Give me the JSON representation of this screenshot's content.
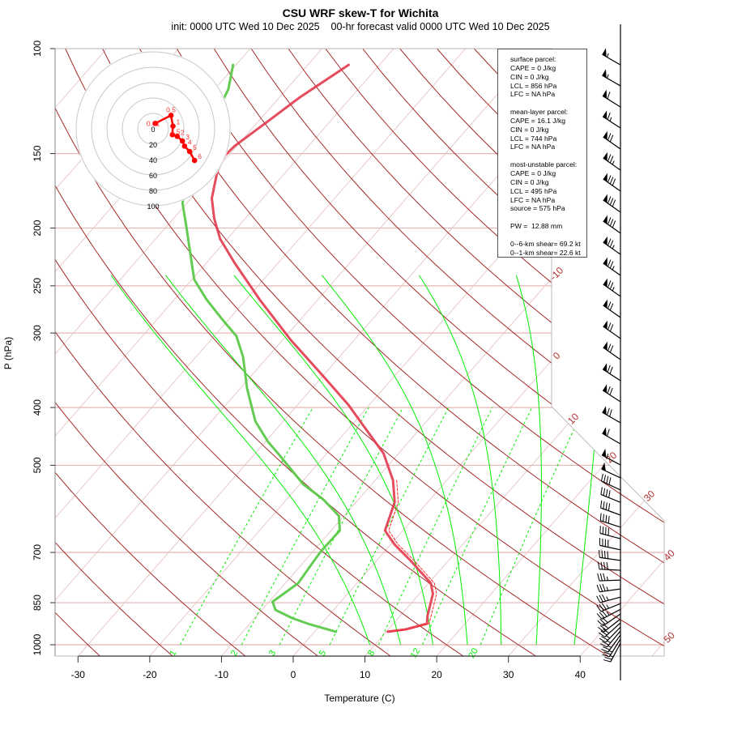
{
  "title": "CSU WRF skew-T for Wichita",
  "subtitle": "init: 0000 UTC Wed 10 Dec 2025    00-hr forecast valid 0000 UTC Wed 10 Dec 2025",
  "colors": {
    "temperature": "#e2394d",
    "dewpoint": "#5cc94a",
    "dashed_profile": "#ff2a2a",
    "dry_adiabat": "#a52a2a",
    "isotherm": "#e8c4c4",
    "pressure_line": "#e5b5b5",
    "moist_adiabat": "#00ee00",
    "mixing_ratio": "#00ee00",
    "hodograph": "#ff0000",
    "wind_barb": "#000000"
  },
  "chart_data": {
    "type": "line",
    "title": "CSU WRF skew-T for Wichita",
    "xlabel": "Temperature (C)",
    "ylabel": "P (hPa)",
    "xlim": [
      -30,
      40
    ],
    "ylim": [
      1050,
      100
    ],
    "x_ticks": [
      "-30",
      "-20",
      "-10",
      "0",
      "10",
      "20",
      "30",
      "40"
    ],
    "x_tick_values": [
      -30,
      -20,
      -10,
      0,
      10,
      20,
      30,
      40
    ],
    "y_ticks": [
      "100",
      "150",
      "200",
      "250",
      "300",
      "400",
      "500",
      "700",
      "850",
      "1000"
    ],
    "y_tick_values": [
      100,
      150,
      200,
      250,
      300,
      400,
      500,
      700,
      850,
      1000
    ],
    "isotherm_labels": [
      "-10",
      "0",
      "10",
      "20",
      "30",
      "40",
      "50"
    ],
    "isotherm_label_values": [
      -10,
      0,
      10,
      20,
      30,
      40,
      50
    ],
    "mixing_ratio_labels": [
      "1",
      "2",
      "3",
      "5",
      "8",
      "12",
      "20"
    ],
    "mixing_ratio_values_gkg": [
      1,
      2,
      3,
      5,
      8,
      12,
      20
    ],
    "dry_adiabats_theta_C": [
      -30,
      -20,
      -10,
      0,
      10,
      20,
      30,
      40,
      50,
      60,
      70,
      80,
      90,
      100,
      110,
      120,
      130,
      140,
      150,
      160,
      170,
      180,
      190,
      200,
      210
    ],
    "moist_adiabats_thetaw_C": [
      9.3,
      13.6,
      18.1,
      22.9,
      27.6,
      32.5,
      37.8
    ],
    "series": [
      {
        "name": "temperature",
        "p": [
          106.5,
          121,
          132.6,
          145.6,
          151,
          160.9,
          178.4,
          192.9,
          208.6,
          229.1,
          263.7,
          308.4,
          355,
          396,
          441.8,
          477.6,
          529.9,
          576.6,
          643.3,
          678.6,
          724.5,
          788.3,
          821.8,
          893.8,
          922,
          942.3,
          951
        ],
        "values": [
          -64.3,
          -67.2,
          -68.7,
          -70.3,
          -70.5,
          -69.6,
          -67.1,
          -64.3,
          -61.0,
          -56.0,
          -48.1,
          -38.8,
          -29.8,
          -22.9,
          -16.6,
          -12.1,
          -7.5,
          -4.6,
          -2.5,
          0.5,
          4.9,
          10.3,
          11.9,
          13.8,
          14.7,
          12.4,
          10.2
        ]
      },
      {
        "name": "dewpoint",
        "p": [
          106.5,
          117,
          132.6,
          155,
          181.2,
          199,
          243.9,
          263.7,
          285.1,
          303.6,
          328.5,
          372,
          421.7,
          456,
          477.6,
          538.3,
          571.2,
          608.1,
          643.3,
          695.7,
          724.5,
          788.3,
          847,
          874,
          902,
          922,
          951
        ],
        "values": [
          -80.4,
          -78.1,
          -76.4,
          -73.9,
          -70.7,
          -67.2,
          -59.7,
          -55.5,
          -50.8,
          -46.9,
          -43.5,
          -39.0,
          -33.9,
          -29.7,
          -26.8,
          -19.5,
          -14.8,
          -10.7,
          -8.8,
          -8.9,
          -8.7,
          -8.2,
          -9.5,
          -8.1,
          -4.8,
          -1.9,
          3.0
        ]
      },
      {
        "name": "dashed_profile",
        "p": [
          529.9,
          576.6,
          643.3,
          678.6,
          724.5,
          788.3,
          821.8,
          893.8,
          922,
          942.3,
          951
        ],
        "values": [
          -7.0,
          -4.1,
          -2.0,
          1.0,
          5.4,
          10.8,
          12.4,
          14.3,
          15.0,
          12.8,
          10.5
        ]
      }
    ],
    "winds": {
      "p": [
        106.5,
        115.5,
        125.3,
        135.9,
        147.4,
        159.9,
        173.4,
        188.1,
        204,
        221.4,
        240.1,
        260.4,
        282.5,
        306.4,
        332.4,
        360.6,
        391.2,
        424.4,
        460.3,
        499.3,
        524.9,
        550,
        577,
        606,
        635,
        664,
        693,
        722,
        750,
        779,
        806,
        832,
        853,
        872,
        888,
        905,
        919,
        934,
        948,
        963,
        978,
        994
      ],
      "dir": [
        300,
        300,
        302,
        303,
        305,
        305,
        305,
        305,
        305,
        305,
        305,
        305,
        305,
        305,
        305,
        303,
        303,
        300,
        300,
        298,
        295,
        295,
        292,
        290,
        288,
        285,
        282,
        278,
        273,
        268,
        262,
        255,
        248,
        242,
        236,
        232,
        228,
        224,
        220,
        216,
        212,
        208
      ],
      "speed_kt": [
        55,
        55,
        60,
        65,
        70,
        75,
        80,
        80,
        80,
        75,
        75,
        75,
        70,
        70,
        70,
        70,
        70,
        70,
        60,
        55,
        50,
        40,
        40,
        40,
        40,
        40,
        40,
        40,
        40,
        35,
        35,
        35,
        35,
        35,
        30,
        30,
        30,
        25,
        25,
        25,
        25,
        25
      ]
    },
    "hodograph": {
      "ring_labels": [
        "0",
        "20",
        "40",
        "60",
        "80",
        "100"
      ],
      "ring_values_kt": [
        0,
        20,
        40,
        60,
        80,
        100
      ],
      "points": [
        {
          "label": "0.01",
          "u": 3.0,
          "v": 7.0
        },
        {
          "label": "0.5",
          "u": 23.3,
          "v": 17.5
        },
        {
          "label": "1",
          "u": 25.8,
          "v": 3.5
        },
        {
          "label": "1.5",
          "u": 25.1,
          "v": -7.7
        },
        {
          "label": "2",
          "u": 31.4,
          "v": -9.8
        },
        {
          "label": "3",
          "u": 38.1,
          "v": -15.8
        },
        {
          "label": "4",
          "u": 40.9,
          "v": -22.5
        },
        {
          "label": "5",
          "u": 47.5,
          "v": -29.5
        },
        {
          "label": "6",
          "u": 53.9,
          "v": -41.1
        }
      ]
    }
  },
  "parcel_info": {
    "lines": [
      "surface parcel:",
      "CAPE = 0 J/kg",
      "CIN = 0 J/kg",
      "LCL = 856 hPa",
      "LFC = NA hPa",
      "",
      "mean-layer parcel:",
      "CAPE = 16.1 J/kg",
      "CIN = 0 J/kg",
      "LCL = 744 hPa",
      "LFC = NA hPa",
      "",
      "most-unstable parcel:",
      "CAPE = 0 J/kg",
      "CIN = 0 J/kg",
      "LCL = 495 hPa",
      "LFC = NA hPa",
      "source = 575 hPa",
      "",
      "PW =  12.88 mm",
      "",
      "0--6-km shear= 69.2 kt",
      "0--1-km shear= 22.6 kt"
    ]
  }
}
